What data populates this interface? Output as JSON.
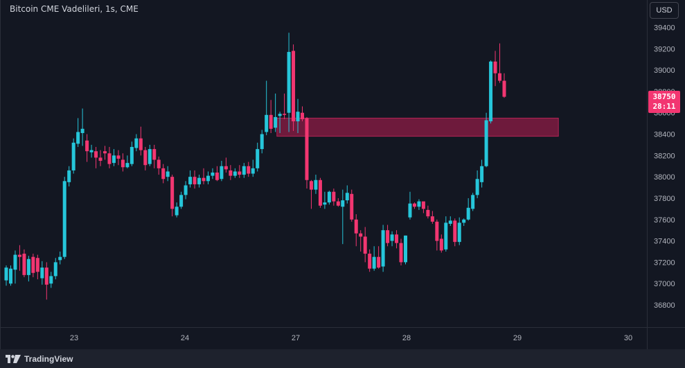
{
  "header": {
    "title": "Bitcoin CME Vadelileri, 1s, CME",
    "currency_label": "USD"
  },
  "footer": {
    "brand": "TradingView"
  },
  "last_price": {
    "price": "38750",
    "countdown": "28:11"
  },
  "colors": {
    "up": "#26c6da",
    "down": "#f23671",
    "background": "#131722",
    "zone_fill": "#6e1a3c",
    "zone_border": "#b32455"
  },
  "chart_data": {
    "type": "candlestick",
    "title": "Bitcoin CME Vadelileri, 1s, CME",
    "ylim": [
      36600,
      39600
    ],
    "y_ticks": [
      36800,
      37000,
      37200,
      37400,
      37600,
      37800,
      38000,
      38200,
      38400,
      38600,
      38800,
      39000,
      39200,
      39400
    ],
    "x_ticks": [
      {
        "label": "23",
        "x": 23
      },
      {
        "label": "24",
        "x": 24
      },
      {
        "label": "27",
        "x": 25
      },
      {
        "label": "28",
        "x": 26
      },
      {
        "label": "29",
        "x": 27
      },
      {
        "label": "30",
        "x": 28
      }
    ],
    "xlim": [
      22.37,
      28.23
    ],
    "grid": false,
    "zone": {
      "x_from": 24.83,
      "x_to": 27.37,
      "y_top": 38550,
      "y_bottom": 38380
    },
    "candles": [
      [
        37030,
        37150,
        37170,
        36980
      ],
      [
        37000,
        37140,
        37170,
        36980
      ],
      [
        37130,
        37270,
        37310,
        37000
      ],
      [
        37270,
        37250,
        37360,
        37120
      ],
      [
        37280,
        37080,
        37320,
        37060
      ],
      [
        37080,
        37230,
        37260,
        37020
      ],
      [
        37250,
        37100,
        37280,
        37060
      ],
      [
        37240,
        37110,
        37270,
        37040
      ],
      [
        37050,
        37150,
        37210,
        36990
      ],
      [
        37150,
        36990,
        37200,
        36850
      ],
      [
        37000,
        37070,
        37110,
        36960
      ],
      [
        37070,
        37200,
        37240,
        37040
      ],
      [
        37220,
        37250,
        37300,
        37180
      ],
      [
        37250,
        37960,
        38000,
        37230
      ],
      [
        37950,
        38060,
        38100,
        37910
      ],
      [
        38060,
        38320,
        38360,
        38030
      ],
      [
        38310,
        38420,
        38550,
        38280
      ],
      [
        38410,
        38450,
        38640,
        38290
      ],
      [
        38340,
        38240,
        38400,
        38140
      ],
      [
        38230,
        38250,
        38300,
        38180
      ],
      [
        38240,
        38180,
        38280,
        38080
      ],
      [
        38180,
        38150,
        38250,
        38100
      ],
      [
        38240,
        38220,
        38290,
        38160
      ],
      [
        38220,
        38120,
        38280,
        38080
      ],
      [
        38130,
        38200,
        38260,
        38100
      ],
      [
        38200,
        38170,
        38250,
        38110
      ],
      [
        38160,
        38090,
        38220,
        38050
      ],
      [
        38090,
        38130,
        38200,
        38080
      ],
      [
        38120,
        38280,
        38330,
        38100
      ],
      [
        38270,
        38360,
        38400,
        38240
      ],
      [
        38360,
        38250,
        38470,
        38200
      ],
      [
        38250,
        38110,
        38280,
        38060
      ],
      [
        38120,
        38260,
        38300,
        38100
      ],
      [
        38260,
        38160,
        38300,
        38080
      ],
      [
        38160,
        38080,
        38190,
        38020
      ],
      [
        38080,
        37980,
        38120,
        37940
      ],
      [
        38000,
        38050,
        38100,
        37960
      ],
      [
        38000,
        37700,
        38020,
        37630
      ],
      [
        37640,
        37720,
        37760,
        37620
      ],
      [
        37720,
        37830,
        37860,
        37700
      ],
      [
        37830,
        37920,
        37960,
        37790
      ],
      [
        37930,
        38000,
        38060,
        37900
      ],
      [
        38000,
        37930,
        38060,
        37890
      ],
      [
        37930,
        37990,
        38020,
        37900
      ],
      [
        37990,
        37960,
        38080,
        37930
      ],
      [
        37960,
        38010,
        38050,
        37930
      ],
      [
        38010,
        38040,
        38080,
        37980
      ],
      [
        38040,
        37970,
        38100,
        37960
      ],
      [
        37980,
        38100,
        38150,
        37960
      ],
      [
        38100,
        38070,
        38180,
        38040
      ],
      [
        38060,
        38010,
        38110,
        37970
      ],
      [
        38010,
        38050,
        38080,
        37990
      ],
      [
        38050,
        38020,
        38110,
        37990
      ],
      [
        38020,
        38100,
        38130,
        37990
      ],
      [
        38100,
        38030,
        38140,
        38000
      ],
      [
        38030,
        38080,
        38160,
        38000
      ],
      [
        38080,
        38260,
        38320,
        38050
      ],
      [
        38260,
        38400,
        38440,
        38220
      ],
      [
        38420,
        38580,
        38900,
        38390
      ],
      [
        38580,
        38450,
        38720,
        38410
      ],
      [
        38460,
        38560,
        38780,
        38420
      ],
      [
        38570,
        38590,
        38610,
        38410
      ],
      [
        38590,
        38580,
        38780,
        38540
      ],
      [
        38600,
        39170,
        39350,
        38420
      ],
      [
        39180,
        38520,
        39240,
        38430
      ],
      [
        38520,
        38610,
        38730,
        38410
      ],
      [
        38600,
        38540,
        38660,
        38520
      ],
      [
        38550,
        37970,
        38560,
        37890
      ],
      [
        37960,
        37880,
        37970,
        37700
      ],
      [
        37880,
        37970,
        38020,
        37840
      ],
      [
        37970,
        37730,
        37990,
        37710
      ],
      [
        37740,
        37760,
        37860,
        37700
      ],
      [
        37760,
        37860,
        37870,
        37740
      ],
      [
        37860,
        37770,
        37890,
        37730
      ],
      [
        37770,
        37730,
        37800,
        37720
      ],
      [
        37720,
        37780,
        37880,
        37370
      ],
      [
        37780,
        37850,
        37920,
        37750
      ],
      [
        37840,
        37600,
        37880,
        37580
      ],
      [
        37600,
        37470,
        37650,
        37350
      ],
      [
        37470,
        37440,
        37500,
        37300
      ],
      [
        37440,
        37280,
        37530,
        37200
      ],
      [
        37280,
        37140,
        37320,
        37110
      ],
      [
        37140,
        37250,
        37350,
        37120
      ],
      [
        37250,
        37150,
        37350,
        37140
      ],
      [
        37160,
        37500,
        37550,
        37110
      ],
      [
        37500,
        37380,
        37550,
        37350
      ],
      [
        37400,
        37460,
        37490,
        37350
      ],
      [
        37460,
        37380,
        37500,
        37330
      ],
      [
        37380,
        37200,
        37420,
        37170
      ],
      [
        37200,
        37450,
        37450,
        37180
      ],
      [
        37620,
        37750,
        37860,
        37600
      ],
      [
        37750,
        37720,
        37760,
        37700
      ],
      [
        37720,
        37770,
        37790,
        37690
      ],
      [
        37770,
        37700,
        37760,
        37660
      ],
      [
        37690,
        37630,
        37730,
        37610
      ],
      [
        37630,
        37580,
        37680,
        37560
      ],
      [
        37580,
        37400,
        37600,
        37310
      ],
      [
        37420,
        37310,
        37460,
        37290
      ],
      [
        37320,
        37570,
        37630,
        37300
      ],
      [
        37560,
        37590,
        37630,
        37540
      ],
      [
        37590,
        37390,
        37610,
        37350
      ],
      [
        37390,
        37570,
        37620,
        37360
      ],
      [
        37570,
        37600,
        37610,
        37540
      ],
      [
        37600,
        37710,
        37800,
        37590
      ],
      [
        37700,
        37830,
        37850,
        37680
      ],
      [
        37830,
        37980,
        38060,
        37800
      ],
      [
        37950,
        38100,
        38160,
        37900
      ],
      [
        38100,
        38530,
        38600,
        38090
      ],
      [
        38520,
        39080,
        39090,
        38500
      ],
      [
        39080,
        38970,
        39180,
        38850
      ],
      [
        38970,
        38900,
        39250,
        38880
      ],
      [
        38900,
        38750,
        38970,
        38740
      ]
    ]
  }
}
